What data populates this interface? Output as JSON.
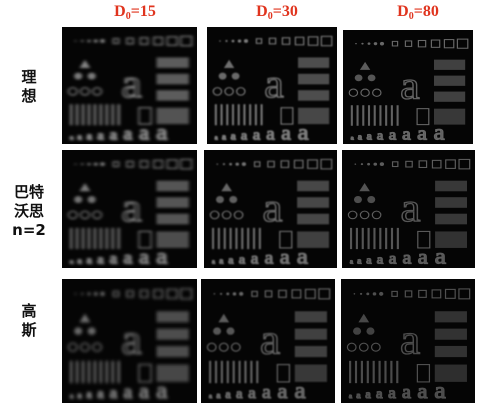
{
  "columns": [
    {
      "prefix": "D",
      "sub": "0",
      "suffix": "=15"
    },
    {
      "prefix": "D",
      "sub": "0",
      "suffix": "=30"
    },
    {
      "prefix": "D",
      "sub": "0",
      "suffix": "=80"
    }
  ],
  "rows": [
    {
      "lines": [
        "理",
        "想"
      ]
    },
    {
      "lines": [
        "巴特",
        "沃思",
        "n=2"
      ]
    },
    {
      "lines": [
        "高",
        "斯"
      ]
    }
  ],
  "test_pattern_letter": "a",
  "colors": {
    "heading": "#e0341e",
    "panel_bg": "#050505"
  },
  "panel_brightness": [
    [
      0.65,
      0.55,
      0.45
    ],
    [
      0.6,
      0.5,
      0.4
    ],
    [
      0.55,
      0.45,
      0.35
    ]
  ]
}
